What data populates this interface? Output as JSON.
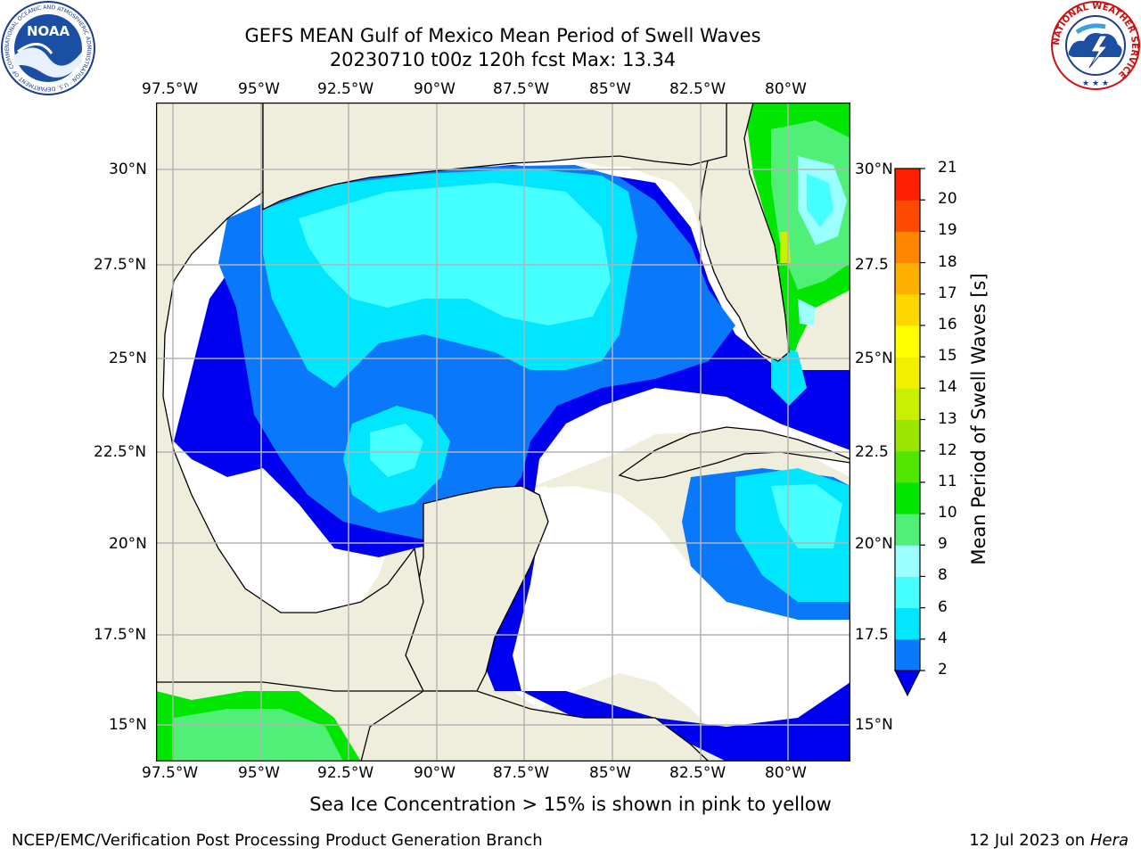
{
  "header": {
    "title": "GEFS MEAN Gulf of Mexico Mean Period of Swell Waves",
    "subtitle": "20230710 t00z 120h fcst   Max: 13.34"
  },
  "logos": {
    "noara": {
      "center_text": "NOAA",
      "ring_text": "NATIONAL OCEANIC AND ATMOSPHERIC ADMINISTRATION · U.S. DEPARTMENT OF COMMERCE"
    },
    "nws": {
      "ring_text": "NATIONAL WEATHER SERVICE"
    }
  },
  "map": {
    "region": "Gulf of Mexico",
    "lon_ticks": [
      "97.5°W",
      "95°W",
      "92.5°W",
      "90°W",
      "87.5°W",
      "85°W",
      "82.5°W",
      "80°W"
    ],
    "lat_ticks_left": [
      "30°N",
      "27.5°N",
      "25°N",
      "22.5°N",
      "20°N",
      "17.5°N",
      "15°N"
    ],
    "lat_ticks_right": [
      "30°N",
      "27.5",
      "25°N",
      "22.5",
      "20°N",
      "17.5",
      "15°N"
    ],
    "colors": {
      "land": "#efeedd",
      "ocean_missing": "#ffffff",
      "grid": "#b3b3b3"
    }
  },
  "colorbar": {
    "label": "Mean Period of Swell Waves [s]",
    "levels": [
      "2",
      "4",
      "6",
      "8",
      "9",
      "10",
      "11",
      "12",
      "13",
      "14",
      "15",
      "16",
      "17",
      "18",
      "19",
      "20",
      "21"
    ],
    "colors": [
      "#0a78fa",
      "#00e6ff",
      "#46ffff",
      "#9bffff",
      "#50f078",
      "#00e600",
      "#50e600",
      "#9be600",
      "#c8f000",
      "#f0f000",
      "#ffff00",
      "#ffd700",
      "#ffaf00",
      "#ff8700",
      "#ff4b00",
      "#ff1e00"
    ],
    "extend_color": "#0000f0"
  },
  "footer": {
    "note": "Sea Ice Concentration > 15% is shown in pink to yellow",
    "credit": "NCEP/EMC/Verification Post Processing Product Generation Branch",
    "date_prefix": "12 Jul 2023 on ",
    "machine": "Hera"
  }
}
